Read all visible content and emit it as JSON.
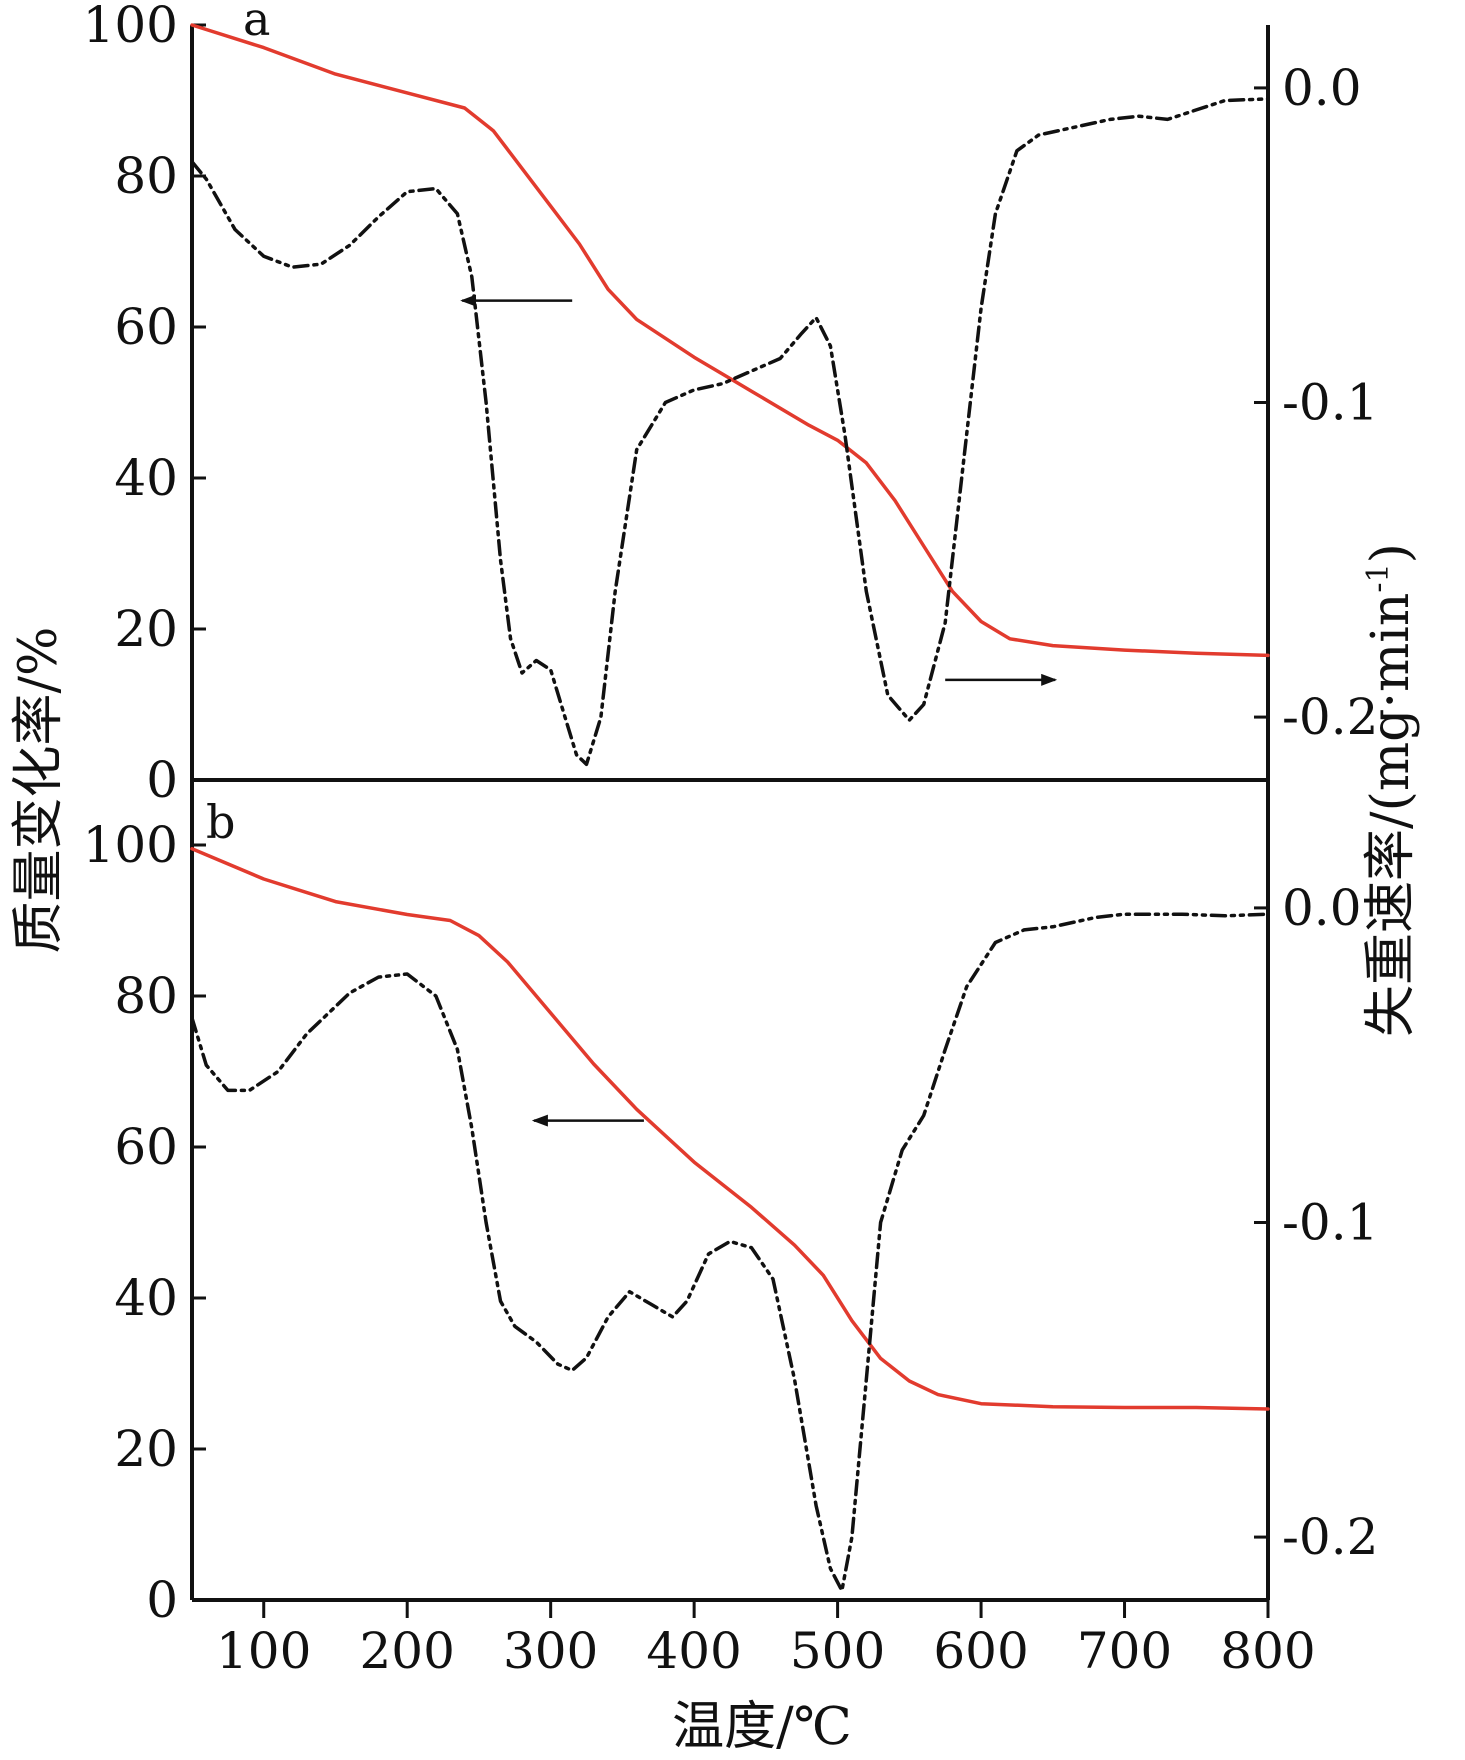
{
  "chart_data": {
    "type": "line",
    "x_axis": {
      "label": "温度/℃",
      "range": [
        50,
        800
      ],
      "ticks": [
        100,
        200,
        300,
        400,
        500,
        600,
        700,
        800
      ]
    },
    "left_axis": {
      "label": "质量变化率/%",
      "range": [
        0,
        100
      ],
      "ticks": [
        0,
        20,
        40,
        60,
        80,
        100
      ]
    },
    "right_axis": {
      "label": "失重速率/(mg·min-1)",
      "label_main": "失重速率/(mg·min",
      "label_sup": "-1",
      "label_close": ")",
      "range": [
        -0.22,
        0.02
      ],
      "ticks": [
        0.0,
        -0.1,
        -0.2
      ],
      "tick_labels": [
        "0.0",
        "-0.1",
        "-0.2"
      ]
    },
    "colors": {
      "tg": "#e23b2e",
      "dtg": "#111111",
      "axis": "#111111"
    },
    "panels": [
      {
        "label": "a",
        "series": [
          {
            "kind": "tg",
            "axis": "left",
            "style": "solid",
            "points": [
              [
                50,
                100
              ],
              [
                100,
                97
              ],
              [
                150,
                93.5
              ],
              [
                200,
                91
              ],
              [
                240,
                89
              ],
              [
                260,
                86
              ],
              [
                280,
                81
              ],
              [
                300,
                76
              ],
              [
                320,
                71
              ],
              [
                340,
                65
              ],
              [
                360,
                61
              ],
              [
                400,
                56
              ],
              [
                440,
                51.5
              ],
              [
                480,
                47
              ],
              [
                500,
                45
              ],
              [
                520,
                42
              ],
              [
                540,
                37
              ],
              [
                560,
                31
              ],
              [
                580,
                25
              ],
              [
                600,
                21
              ],
              [
                620,
                18.7
              ],
              [
                650,
                17.8
              ],
              [
                700,
                17.2
              ],
              [
                750,
                16.8
              ],
              [
                800,
                16.5
              ]
            ]
          },
          {
            "kind": "dtg",
            "axis": "right",
            "style": "dashdot",
            "points": [
              [
                50,
                -0.0235
              ],
              [
                60,
                -0.029
              ],
              [
                80,
                -0.045
              ],
              [
                100,
                -0.0535
              ],
              [
                120,
                -0.057
              ],
              [
                140,
                -0.056
              ],
              [
                160,
                -0.05
              ],
              [
                180,
                -0.041
              ],
              [
                200,
                -0.033
              ],
              [
                220,
                -0.032
              ],
              [
                235,
                -0.04
              ],
              [
                245,
                -0.06
              ],
              [
                255,
                -0.1
              ],
              [
                265,
                -0.15
              ],
              [
                272,
                -0.175
              ],
              [
                280,
                -0.186
              ],
              [
                290,
                -0.182
              ],
              [
                300,
                -0.185
              ],
              [
                310,
                -0.2
              ],
              [
                318,
                -0.212
              ],
              [
                325,
                -0.215
              ],
              [
                335,
                -0.2
              ],
              [
                345,
                -0.16
              ],
              [
                360,
                -0.115
              ],
              [
                380,
                -0.1
              ],
              [
                400,
                -0.096
              ],
              [
                420,
                -0.094
              ],
              [
                440,
                -0.09
              ],
              [
                460,
                -0.086
              ],
              [
                475,
                -0.078
              ],
              [
                485,
                -0.073
              ],
              [
                495,
                -0.082
              ],
              [
                505,
                -0.11
              ],
              [
                520,
                -0.16
              ],
              [
                535,
                -0.193
              ],
              [
                550,
                -0.201
              ],
              [
                560,
                -0.196
              ],
              [
                575,
                -0.17
              ],
              [
                590,
                -0.11
              ],
              [
                600,
                -0.07
              ],
              [
                610,
                -0.04
              ],
              [
                625,
                -0.02
              ],
              [
                640,
                -0.015
              ],
              [
                660,
                -0.013
              ],
              [
                690,
                -0.01
              ],
              [
                710,
                -0.009
              ],
              [
                730,
                -0.01
              ],
              [
                750,
                -0.007
              ],
              [
                770,
                -0.004
              ],
              [
                800,
                -0.0035
              ]
            ]
          }
        ],
        "annotations": [
          {
            "text": "←",
            "x": 315,
            "y": 63.5,
            "points_to": "left"
          },
          {
            "text": "→",
            "x": 630,
            "y": 0.0725,
            "points_to": "right"
          }
        ]
      },
      {
        "label": "b",
        "series": [
          {
            "kind": "tg",
            "axis": "left",
            "style": "solid",
            "points": [
              [
                50,
                99.5
              ],
              [
                100,
                95.5
              ],
              [
                150,
                92.5
              ],
              [
                200,
                90.8
              ],
              [
                230,
                90
              ],
              [
                250,
                88
              ],
              [
                270,
                84.5
              ],
              [
                290,
                80
              ],
              [
                310,
                75.5
              ],
              [
                330,
                71
              ],
              [
                360,
                65
              ],
              [
                400,
                58
              ],
              [
                440,
                52
              ],
              [
                470,
                47
              ],
              [
                490,
                43
              ],
              [
                510,
                37
              ],
              [
                530,
                32
              ],
              [
                550,
                29
              ],
              [
                570,
                27.2
              ],
              [
                600,
                26
              ],
              [
                650,
                25.6
              ],
              [
                700,
                25.5
              ],
              [
                750,
                25.5
              ],
              [
                800,
                25.3
              ]
            ]
          },
          {
            "kind": "dtg",
            "axis": "right",
            "style": "dashdot",
            "points": [
              [
                50,
                -0.035
              ],
              [
                60,
                -0.05
              ],
              [
                75,
                -0.058
              ],
              [
                90,
                -0.058
              ],
              [
                110,
                -0.052
              ],
              [
                130,
                -0.04
              ],
              [
                160,
                -0.027
              ],
              [
                180,
                -0.022
              ],
              [
                200,
                -0.021
              ],
              [
                220,
                -0.028
              ],
              [
                235,
                -0.045
              ],
              [
                245,
                -0.07
              ],
              [
                255,
                -0.1
              ],
              [
                265,
                -0.125
              ],
              [
                275,
                -0.133
              ],
              [
                290,
                -0.138
              ],
              [
                305,
                -0.145
              ],
              [
                315,
                -0.147
              ],
              [
                325,
                -0.143
              ],
              [
                340,
                -0.13
              ],
              [
                355,
                -0.122
              ],
              [
                370,
                -0.126
              ],
              [
                385,
                -0.13
              ],
              [
                395,
                -0.125
              ],
              [
                410,
                -0.11
              ],
              [
                425,
                -0.106
              ],
              [
                440,
                -0.108
              ],
              [
                455,
                -0.118
              ],
              [
                470,
                -0.15
              ],
              [
                485,
                -0.19
              ],
              [
                495,
                -0.21
              ],
              [
                503,
                -0.217
              ],
              [
                510,
                -0.2
              ],
              [
                520,
                -0.15
              ],
              [
                530,
                -0.1
              ],
              [
                545,
                -0.077
              ],
              [
                560,
                -0.066
              ],
              [
                575,
                -0.045
              ],
              [
                590,
                -0.025
              ],
              [
                610,
                -0.011
              ],
              [
                630,
                -0.007
              ],
              [
                650,
                -0.006
              ],
              [
                680,
                -0.003
              ],
              [
                700,
                -0.002
              ],
              [
                740,
                -0.002
              ],
              [
                770,
                -0.0025
              ],
              [
                800,
                -0.002
              ]
            ]
          }
        ],
        "annotations": [
          {
            "text": "←",
            "x": 365,
            "y": 63.5,
            "points_to": "left"
          },
          {
            "text": "→",
            "x": 575,
            "y": 0.0725,
            "points_to": "right"
          }
        ]
      }
    ]
  }
}
